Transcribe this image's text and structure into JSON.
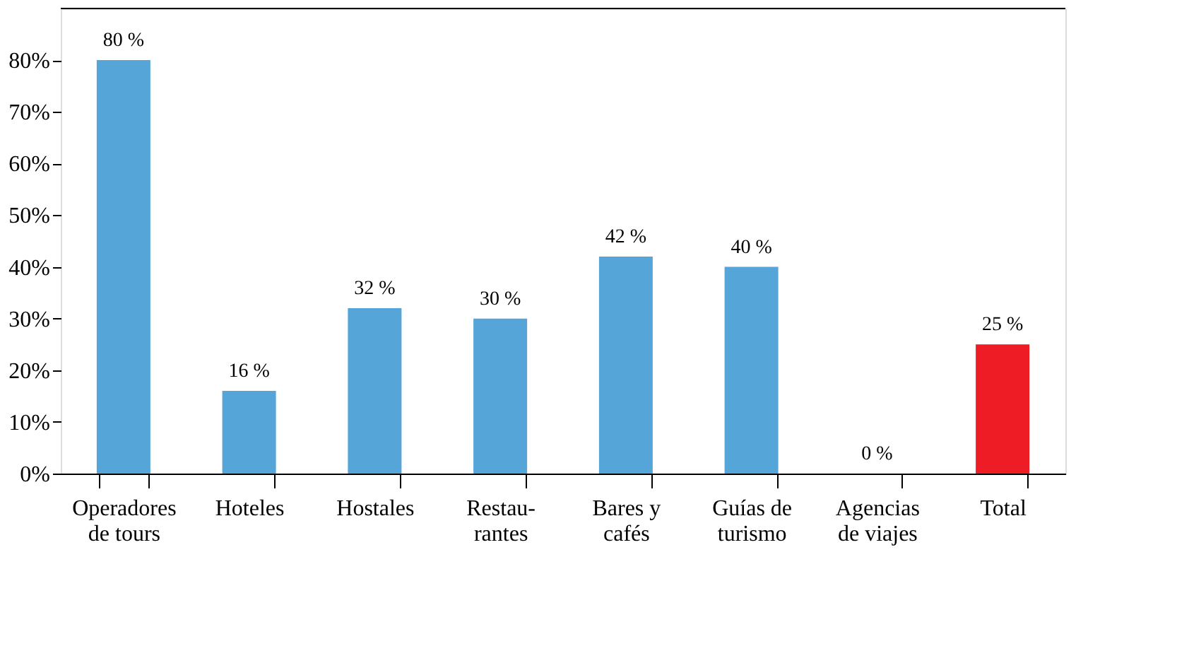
{
  "chart_data": {
    "type": "bar",
    "categories": [
      "Operadores\nde tours",
      "Hoteles",
      "Hostales",
      "Restau-\nrantes",
      "Bares y\ncafés",
      "Guías de\nturismo",
      "Agencias\nde viajes",
      "Total"
    ],
    "values": [
      80,
      16,
      32,
      30,
      42,
      40,
      0,
      25
    ],
    "colors": [
      "#56a5d8",
      "#56a5d8",
      "#56a5d8",
      "#56a5d8",
      "#56a5d8",
      "#56a5d8",
      "#56a5d8",
      "#ee1c25"
    ],
    "value_labels": [
      "80 %",
      "16 %",
      "32 %",
      "30 %",
      "42 %",
      "40 %",
      "0 %",
      "25 %"
    ],
    "ylim": [
      0,
      90
    ],
    "yticks": [
      {
        "value": 0,
        "label": "0%"
      },
      {
        "value": 10,
        "label": "10%"
      },
      {
        "value": 20,
        "label": "20%"
      },
      {
        "value": 30,
        "label": "30%"
      },
      {
        "value": 40,
        "label": "40%"
      },
      {
        "value": 50,
        "label": "50%"
      },
      {
        "value": 60,
        "label": "60%"
      },
      {
        "value": 70,
        "label": "70%"
      },
      {
        "value": 80,
        "label": "80%"
      }
    ],
    "grid": false
  }
}
